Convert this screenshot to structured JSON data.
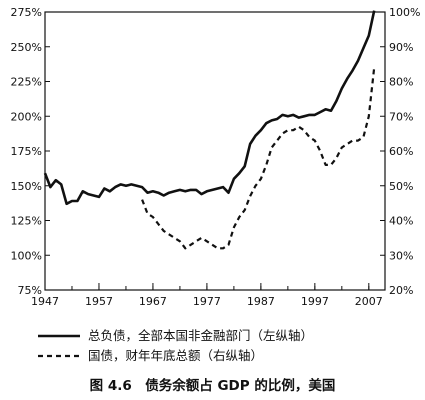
{
  "caption": "图 4.6　债务余额占 GDP 的比例，美国",
  "chart_data": {
    "type": "line",
    "title": "",
    "xlabel": "",
    "ylabel": "",
    "xlim": [
      1947,
      2010
    ],
    "ylim_left": [
      75,
      275
    ],
    "ylim_right": [
      20,
      100
    ],
    "x_ticks": [
      "1947",
      "1957",
      "1967",
      "1977",
      "1987",
      "1997",
      "2007"
    ],
    "y_left_ticks": [
      "75%",
      "100%",
      "125%",
      "150%",
      "175%",
      "200%",
      "225%",
      "250%",
      "275%"
    ],
    "y_right_ticks": [
      "20%",
      "30%",
      "40%",
      "50%",
      "60%",
      "70%",
      "80%",
      "90%",
      "100%"
    ],
    "grid": false,
    "legend_position": "bottom",
    "series": [
      {
        "name": "总负债，全部本国非金融部门（左纵轴）",
        "axis": "left",
        "style": "solid",
        "x": [
          1947,
          1948,
          1949,
          1950,
          1951,
          1952,
          1953,
          1954,
          1955,
          1956,
          1957,
          1958,
          1959,
          1960,
          1961,
          1962,
          1963,
          1964,
          1965,
          1966,
          1967,
          1968,
          1969,
          1970,
          1971,
          1972,
          1973,
          1974,
          1975,
          1976,
          1977,
          1978,
          1979,
          1980,
          1981,
          1982,
          1983,
          1984,
          1985,
          1986,
          1987,
          1988,
          1989,
          1990,
          1991,
          1992,
          1993,
          1994,
          1995,
          1996,
          1997,
          1998,
          1999,
          2000,
          2001,
          2002,
          2003,
          2004,
          2005,
          2006,
          2007,
          2008
        ],
        "values": [
          159,
          149,
          154,
          151,
          137,
          139,
          139,
          146,
          144,
          143,
          142,
          148,
          146,
          149,
          151,
          150,
          151,
          150,
          149,
          145,
          146,
          145,
          143,
          145,
          146,
          147,
          146,
          147,
          147,
          144,
          146,
          147,
          148,
          149,
          145,
          155,
          159,
          164,
          180,
          186,
          190,
          195,
          197,
          198,
          201,
          200,
          201,
          199,
          200,
          201,
          201,
          203,
          205,
          204,
          211,
          220,
          227,
          233,
          240,
          249,
          258,
          276
        ]
      },
      {
        "name": "国债，财年年底总额（右纵轴）",
        "axis": "right",
        "style": "dashed",
        "x": [
          1965,
          1966,
          1967,
          1968,
          1969,
          1970,
          1971,
          1972,
          1973,
          1974,
          1975,
          1976,
          1977,
          1978,
          1979,
          1980,
          1981,
          1982,
          1983,
          1984,
          1985,
          1986,
          1987,
          1988,
          1989,
          1990,
          1991,
          1992,
          1993,
          1994,
          1995,
          1996,
          1997,
          1998,
          1999,
          2000,
          2001,
          2002,
          2003,
          2004,
          2005,
          2006,
          2007,
          2008
        ],
        "values": [
          46,
          42,
          41,
          39,
          37,
          36,
          35,
          34,
          32,
          33,
          34,
          35,
          34,
          33,
          32,
          32,
          33,
          38,
          41,
          43,
          47,
          50,
          52,
          56,
          61,
          63,
          65,
          66,
          66,
          67,
          66,
          64,
          63,
          60,
          56,
          56,
          58,
          61,
          62,
          63,
          63,
          64,
          70,
          84
        ]
      }
    ]
  }
}
